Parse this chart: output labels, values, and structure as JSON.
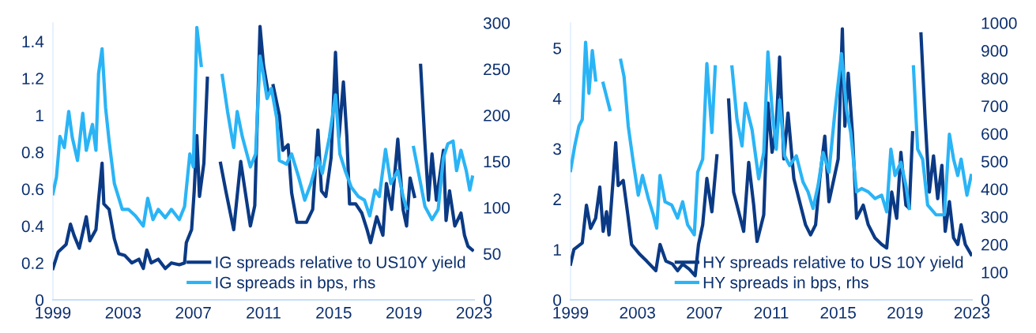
{
  "chart_data": [
    {
      "type": "line",
      "xlim": [
        1999,
        2023
      ],
      "xticks": [
        1999,
        2003,
        2007,
        2011,
        2015,
        2019,
        2023
      ],
      "ylim": [
        0,
        1.5
      ],
      "yticks": [
        0,
        0.2,
        0.4,
        0.6,
        0.8,
        1,
        1.2,
        1.4
      ],
      "y2lim": [
        0,
        300
      ],
      "y2ticks": [
        0,
        50,
        100,
        150,
        200,
        250,
        300
      ],
      "grid": false,
      "legend": "bottom right",
      "marker": "none",
      "line_style": "solid",
      "series": [
        {
          "name": "IG spreads relative to US10Y yield",
          "color": "#0b3a85",
          "axis": "y",
          "x": [
            1999.0,
            1999.3,
            1999.75,
            2000.0,
            2000.2,
            2000.5,
            2000.9,
            2001.1,
            2001.45,
            2001.6,
            2001.8,
            2001.9,
            2002.2,
            2002.5,
            2002.75,
            2003.1,
            2003.5,
            2003.9,
            2004.15,
            2004.35,
            2004.6,
            2005.0,
            2005.4,
            2005.75,
            2006.2,
            2006.5,
            2006.6,
            2006.9,
            2007.05,
            2007.2,
            2007.35,
            2007.6,
            2007.8,
            2007.9,
            2008.2,
            2008.4,
            2008.55,
            2008.85,
            2009.3,
            2009.7,
            2009.95,
            2010.25,
            2010.5,
            2010.8,
            2011.0,
            2011.25,
            2011.4,
            2011.55,
            2011.9,
            2012.1,
            2012.4,
            2012.6,
            2012.9,
            2013.45,
            2013.8,
            2014.1,
            2014.3,
            2014.55,
            2014.85,
            2015.1,
            2015.3,
            2015.55,
            2015.75,
            2015.9,
            2016.25,
            2016.6,
            2016.9,
            2017.1,
            2017.45,
            2017.8,
            2018.0,
            2018.3,
            2018.65,
            2018.95,
            2019.15,
            2019.35,
            2019.6,
            2019.75,
            2019.95,
            2020.2,
            2020.4,
            2020.6,
            2020.85,
            2021.25,
            2021.4,
            2021.6,
            2021.9,
            2022.25,
            2022.45,
            2022.65,
            2022.9
          ],
          "values": [
            0.17,
            0.26,
            0.3,
            0.41,
            0.35,
            0.28,
            0.45,
            0.32,
            0.38,
            0.54,
            0.74,
            0.52,
            0.49,
            0.33,
            0.25,
            0.24,
            0.2,
            0.22,
            0.17,
            0.27,
            0.2,
            0.22,
            0.17,
            0.2,
            0.19,
            0.2,
            0.31,
            0.38,
            0.59,
            0.89,
            0.56,
            0.74,
            1.2,
            null,
            null,
            null,
            0.74,
            0.59,
            0.38,
            0.75,
            0.59,
            0.4,
            0.51,
            1.48,
            1.27,
            1.13,
            null,
            1.16,
            1.0,
            0.81,
            0.84,
            0.58,
            0.42,
            0.42,
            0.49,
            0.92,
            0.59,
            0.56,
            0.77,
            1.34,
            0.88,
            1.18,
            0.88,
            0.52,
            0.52,
            0.47,
            0.38,
            0.31,
            0.45,
            0.35,
            0.63,
            0.49,
            0.87,
            0.49,
            0.4,
            0.66,
            0.56,
            null,
            1.27,
            0.84,
            0.54,
            0.79,
            0.54,
            0.81,
            0.43,
            0.59,
            0.4,
            0.47,
            0.35,
            0.29,
            0.27
          ]
        },
        {
          "name": "IG spreads in bps, rhs",
          "color": "#2ab4f6",
          "axis": "y2",
          "x": [
            1999.0,
            1999.2,
            1999.4,
            1999.65,
            1999.9,
            2000.1,
            2000.4,
            2000.7,
            2000.9,
            2001.25,
            2001.45,
            2001.6,
            2001.8,
            2002.0,
            2002.2,
            2002.5,
            2002.95,
            2003.3,
            2003.7,
            2004.15,
            2004.4,
            2004.7,
            2005.0,
            2005.4,
            2005.75,
            2006.2,
            2006.5,
            2006.8,
            2007.0,
            2007.2,
            2007.45,
            2007.6,
            2008.5,
            2008.65,
            2008.95,
            2009.3,
            2009.5,
            2009.8,
            2010.25,
            2010.55,
            2010.8,
            2011.0,
            2011.2,
            2011.45,
            2011.75,
            2011.9,
            2012.3,
            2012.6,
            2013.0,
            2013.35,
            2013.7,
            2014.1,
            2014.35,
            2014.75,
            2015.1,
            2015.35,
            2015.65,
            2016.0,
            2016.4,
            2016.75,
            2017.05,
            2017.35,
            2017.6,
            2017.95,
            2018.25,
            2018.65,
            2018.95,
            2019.15,
            2019.25,
            2019.4,
            2019.55,
            2019.95,
            2020.2,
            2020.6,
            2020.95,
            2021.25,
            2021.5,
            2021.8,
            2022.0,
            2022.25,
            2022.55,
            2022.75,
            2022.9
          ],
          "values": [
            115,
            133,
            177,
            165,
            204,
            176,
            151,
            202,
            162,
            190,
            162,
            245,
            272,
            208,
            172,
            126,
            98,
            98,
            91,
            80,
            110,
            87,
            98,
            89,
            98,
            87,
            101,
            158,
            144,
            295,
            254,
            null,
            null,
            243,
            204,
            165,
            204,
            176,
            144,
            158,
            264,
            243,
            218,
            229,
            197,
            151,
            147,
            158,
            133,
            108,
            126,
            154,
            137,
            176,
            222,
            158,
            140,
            122,
            112,
            108,
            91,
            119,
            112,
            163,
            126,
            140,
            112,
            99,
            null,
            null,
            165,
            126,
            101,
            87,
            98,
            154,
            169,
            172,
            140,
            162,
            140,
            119,
            133
          ]
        }
      ]
    },
    {
      "type": "line",
      "xlim": [
        1999,
        2023
      ],
      "xticks": [
        1999,
        2003,
        2007,
        2011,
        2015,
        2019,
        2023
      ],
      "ylim": [
        0,
        5.5
      ],
      "yticks": [
        0,
        1,
        2,
        3,
        4,
        5
      ],
      "y2lim": [
        0,
        1000
      ],
      "y2ticks": [
        0,
        100,
        200,
        300,
        400,
        500,
        600,
        700,
        800,
        900,
        1000
      ],
      "grid": false,
      "legend": "bottom right",
      "marker": "none",
      "line_style": "solid",
      "series": [
        {
          "name": "HY spreads relative to US 10Y yield",
          "color": "#0b3a85",
          "axis": "y",
          "x": [
            1999.0,
            1999.2,
            1999.7,
            1999.95,
            2000.2,
            2000.5,
            2000.75,
            2000.95,
            2001.15,
            2001.3,
            2001.55,
            2001.7,
            2001.85,
            2002.15,
            2002.4,
            2002.65,
            2003.15,
            2003.55,
            2004.1,
            2004.35,
            2004.7,
            2005.1,
            2005.4,
            2005.7,
            2006.1,
            2006.45,
            2006.65,
            2006.9,
            2007.15,
            2007.45,
            2007.75,
            2008.0,
            2008.3,
            2008.45,
            2008.75,
            2009.05,
            2009.35,
            2009.65,
            2009.95,
            2010.15,
            2010.55,
            2010.8,
            2011.05,
            2011.3,
            2011.5,
            2011.75,
            2012.0,
            2012.35,
            2012.65,
            2013.05,
            2013.35,
            2013.65,
            2013.9,
            2014.2,
            2014.45,
            2014.75,
            2015.0,
            2015.25,
            2015.4,
            2015.6,
            2015.85,
            2016.1,
            2016.5,
            2016.8,
            2017.2,
            2017.6,
            2017.9,
            2018.2,
            2018.5,
            2018.75,
            2019.05,
            2019.25,
            2019.45,
            2019.75,
            2019.95,
            2020.2,
            2020.45,
            2020.7,
            2020.95,
            2021.2,
            2021.4,
            2021.65,
            2021.9,
            2022.15,
            2022.35,
            2022.6,
            2022.95
          ],
          "values": [
            0.71,
            1.0,
            1.13,
            1.88,
            1.42,
            1.62,
            2.24,
            1.36,
            1.75,
            1.29,
            2.41,
            3.12,
            2.27,
            2.37,
            1.75,
            1.1,
            0.9,
            0.77,
            0.58,
            1.1,
            0.77,
            0.71,
            0.58,
            0.71,
            0.61,
            0.48,
            1.1,
            1.49,
            2.41,
            1.75,
            2.86,
            null,
            null,
            3.97,
            2.14,
            1.75,
            1.36,
            2.73,
            1.88,
            1.16,
            1.69,
            3.91,
            2.93,
            3.45,
            4.82,
            2.8,
            3.71,
            2.41,
            2.01,
            1.49,
            1.29,
            1.49,
            2.41,
            3.25,
            1.95,
            2.41,
            2.8,
            5.38,
            3.45,
            4.5,
            3.32,
            1.62,
            1.88,
            1.49,
            1.23,
            1.1,
            1.03,
            2.14,
            1.62,
            2.93,
            1.88,
            1.82,
            3.32,
            null,
            5.28,
            3.58,
            2.14,
            2.86,
            2.01,
            2.67,
            1.36,
            1.95,
            1.23,
            1.1,
            1.49,
            1.1,
            0.9
          ]
        },
        {
          "name": "HY spreads in bps, rhs",
          "color": "#2ab4f6",
          "axis": "y2",
          "x": [
            1999.0,
            1999.25,
            1999.5,
            1999.7,
            1999.9,
            2000.1,
            2000.3,
            2000.5,
            2000.7,
            2000.95,
            2001.15,
            2001.35,
            2001.6,
            2001.8,
            2002.0,
            2002.2,
            2002.45,
            2002.75,
            2003.05,
            2003.3,
            2003.65,
            2003.95,
            2004.15,
            2004.35,
            2004.65,
            2005.05,
            2005.4,
            2005.7,
            2006.0,
            2006.4,
            2006.6,
            2006.9,
            2007.15,
            2007.45,
            2007.65,
            2007.8,
            2008.45,
            2008.65,
            2008.95,
            2009.25,
            2009.45,
            2009.85,
            2010.25,
            2010.55,
            2010.8,
            2011.05,
            2011.3,
            2011.5,
            2011.8,
            2012.1,
            2012.5,
            2012.9,
            2013.2,
            2013.5,
            2013.8,
            2014.1,
            2014.45,
            2014.8,
            2015.2,
            2015.5,
            2015.75,
            2016.1,
            2016.4,
            2016.8,
            2017.2,
            2017.6,
            2017.9,
            2018.15,
            2018.4,
            2018.75,
            2019.05,
            2019.25,
            2019.35,
            2019.5,
            2019.75,
            2020.05,
            2020.35,
            2020.85,
            2021.35,
            2021.65,
            2021.9,
            2022.15,
            2022.35,
            2022.7,
            2022.95
          ],
          "values": [
            467,
            556,
            627,
            651,
            930,
            746,
            900,
            794,
            null,
            782,
            734,
            687,
            null,
            null,
            865,
            805,
            627,
            497,
            378,
            449,
            366,
            307,
            259,
            449,
            354,
            342,
            295,
            354,
            271,
            235,
            461,
            508,
            853,
            604,
            841,
            null,
            null,
            841,
            651,
            556,
            710,
            615,
            437,
            532,
            895,
            687,
            544,
            722,
            520,
            485,
            520,
            425,
            390,
            330,
            413,
            532,
            461,
            675,
            889,
            687,
            604,
            390,
            402,
            390,
            366,
            378,
            318,
            544,
            449,
            497,
            413,
            330,
            null,
            841,
            544,
            508,
            342,
            307,
            307,
            598,
            508,
            449,
            508,
            378,
            449
          ]
        }
      ]
    }
  ]
}
